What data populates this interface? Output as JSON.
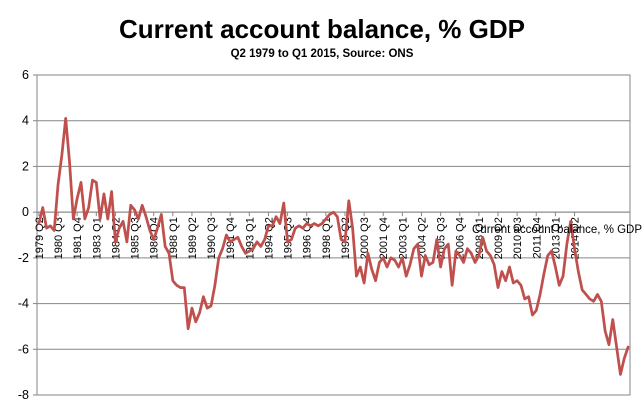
{
  "chart_data": {
    "type": "line",
    "title": "Current account balance, % GDP",
    "subtitle": "Q2 1979 to Q1 2015, Source: ONS",
    "xlabel": "",
    "ylabel": "",
    "ylim": [
      -8,
      6
    ],
    "y_ticks": [
      "6",
      "4",
      "2",
      "0",
      "-2",
      "-4",
      "-6",
      "-8"
    ],
    "x_tick_labels": [
      "1979 Q2",
      "1980 Q3",
      "1981 Q4",
      "1983 Q1",
      "1984 Q2",
      "1985 Q3",
      "1986 Q4",
      "1988 Q1",
      "1989 Q2",
      "1990 Q3",
      "1991 Q4",
      "1993 Q1",
      "1994 Q2",
      "1995 Q3",
      "1996 Q4",
      "1998 Q1",
      "1999 Q2",
      "2000 Q3",
      "2001 Q4",
      "2003 Q1",
      "2004 Q2",
      "2005 Q3",
      "2006 Q4",
      "2008 Q1",
      "2009 Q2",
      "2010 Q3",
      "2011 Q4",
      "2013 Q1",
      "2014 Q2"
    ],
    "grid": true,
    "legend": "Current account balance, % GDP",
    "line_color": "#c0504d",
    "series": [
      {
        "name": "Current account balance, % GDP",
        "values": [
          -0.5,
          0.2,
          -0.7,
          -0.6,
          -0.8,
          1.2,
          2.5,
          4.1,
          2.2,
          -0.3,
          0.6,
          1.3,
          -0.3,
          0.2,
          1.4,
          1.3,
          -0.3,
          0.8,
          -0.3,
          0.9,
          -1.3,
          -0.7,
          -0.4,
          -1.3,
          0.3,
          0.1,
          -0.3,
          0.3,
          -0.2,
          -0.8,
          -1.2,
          -0.7,
          -0.1,
          -1.5,
          -1.8,
          -3.0,
          -3.2,
          -3.3,
          -3.3,
          -5.1,
          -4.2,
          -4.8,
          -4.4,
          -3.7,
          -4.2,
          -4.1,
          -3.2,
          -2.0,
          -1.6,
          -1.0,
          -1.3,
          -1.2,
          -1.1,
          -1.5,
          -1.8,
          -1.7,
          -1.6,
          -1.3,
          -1.5,
          -1.2,
          -0.6,
          -0.6,
          -0.2,
          -0.5,
          0.4,
          -1.3,
          -1.2,
          -0.7,
          -0.6,
          -0.7,
          -0.5,
          -0.6,
          -0.5,
          -0.6,
          -0.5,
          -0.3,
          -0.1,
          0.0,
          -0.2,
          -1.2,
          -1.3,
          0.5,
          -0.7,
          -2.8,
          -2.4,
          -3.1,
          -1.8,
          -2.5,
          -3.0,
          -2.2,
          -2.0,
          -2.4,
          -2.0,
          -2.1,
          -2.4,
          -2.0,
          -2.8,
          -2.3,
          -1.6,
          -1.4,
          -2.8,
          -1.9,
          -2.3,
          -2.2,
          -1.2,
          -2.4,
          -1.6,
          -1.4,
          -3.2,
          -1.7,
          -1.9,
          -2.2,
          -1.6,
          -1.8,
          -2.2,
          -1.9,
          -1.1,
          -1.7,
          -1.9,
          -2.3,
          -3.3,
          -2.6,
          -3.0,
          -2.4,
          -3.1,
          -3.0,
          -3.2,
          -3.8,
          -3.7,
          -4.5,
          -4.3,
          -3.6,
          -2.7,
          -1.9,
          -1.7,
          -2.4,
          -3.2,
          -2.8,
          -1.4,
          -0.4,
          -1.6,
          -2.6,
          -3.4,
          -3.6,
          -3.8,
          -3.9,
          -3.6,
          -3.9,
          -5.2,
          -5.8,
          -4.7,
          -5.9,
          -7.1,
          -6.4,
          -5.9
        ]
      }
    ]
  }
}
